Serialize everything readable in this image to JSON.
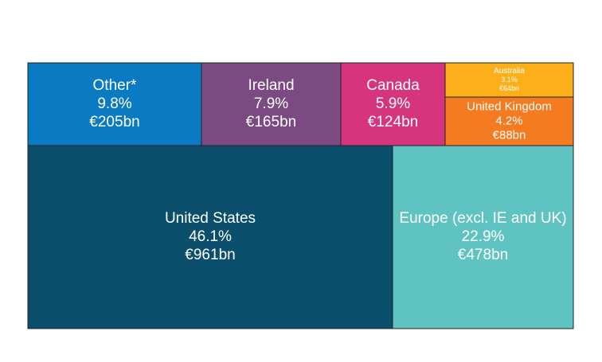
{
  "chart_data": {
    "type": "treemap",
    "title": "",
    "unit": "€bn",
    "items": [
      {
        "name": "United States",
        "percent": "46.1%",
        "amount": "€961bn",
        "value": 961,
        "color": "#0b4f6c",
        "text_color": "#ffffff"
      },
      {
        "name": "Europe (excl. IE and UK)",
        "percent": "22.9%",
        "amount": "€478bn",
        "value": 478,
        "color": "#5fc4c1",
        "text_color": "#ffffff"
      },
      {
        "name": "Other*",
        "percent": "9.8%",
        "amount": "€205bn",
        "value": 205,
        "color": "#0a7bc2",
        "text_color": "#ffffff"
      },
      {
        "name": "Ireland",
        "percent": "7.9%",
        "amount": "€165bn",
        "value": 165,
        "color": "#7b4a82",
        "text_color": "#ffffff"
      },
      {
        "name": "Canada",
        "percent": "5.9%",
        "amount": "€124bn",
        "value": 124,
        "color": "#d6357e",
        "text_color": "#ffffff"
      },
      {
        "name": "United Kingdom",
        "percent": "4.2%",
        "amount": "€88bn",
        "value": 88,
        "color": "#f47b20",
        "text_color": "#ffffff"
      },
      {
        "name": "Australia",
        "percent": "3.1%",
        "amount": "€64bn",
        "value": 64,
        "color": "#fbb01a",
        "text_color": "#ffffff"
      }
    ]
  }
}
